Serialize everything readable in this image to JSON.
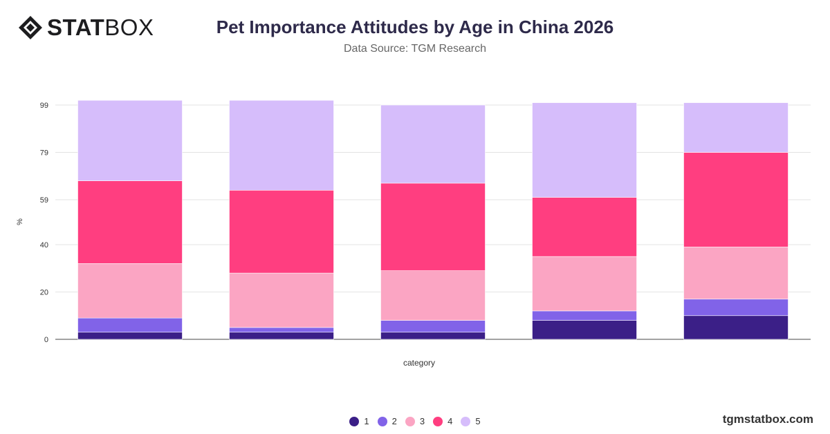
{
  "logo": {
    "part1": "STAT",
    "part2": "BOX"
  },
  "brand": "tgmstatbox.com",
  "chart_data": {
    "type": "bar",
    "stacked": true,
    "title": "Pet Importance Attitudes by Age in China 2026",
    "subtitle": "Data Source: TGM Research",
    "xlabel": "category",
    "ylabel": "%",
    "ylim": [
      0,
      99
    ],
    "yticks": [
      0,
      20,
      40,
      59,
      79,
      99
    ],
    "grid": true,
    "legend_position": "bottom",
    "categories": [
      "",
      "",
      "",
      "",
      ""
    ],
    "series": [
      {
        "name": "1",
        "color": "#3b1f87",
        "values": [
          3,
          3,
          3,
          8,
          10
        ]
      },
      {
        "name": "2",
        "color": "#8163e8",
        "values": [
          6,
          2,
          5,
          4,
          7
        ]
      },
      {
        "name": "3",
        "color": "#fba5c3",
        "values": [
          23,
          23,
          21,
          23,
          22
        ]
      },
      {
        "name": "4",
        "color": "#ff3e80",
        "values": [
          35,
          35,
          37,
          25,
          40
        ]
      },
      {
        "name": "5",
        "color": "#d6bdfb",
        "values": [
          34,
          38,
          33,
          40,
          21
        ]
      }
    ]
  }
}
